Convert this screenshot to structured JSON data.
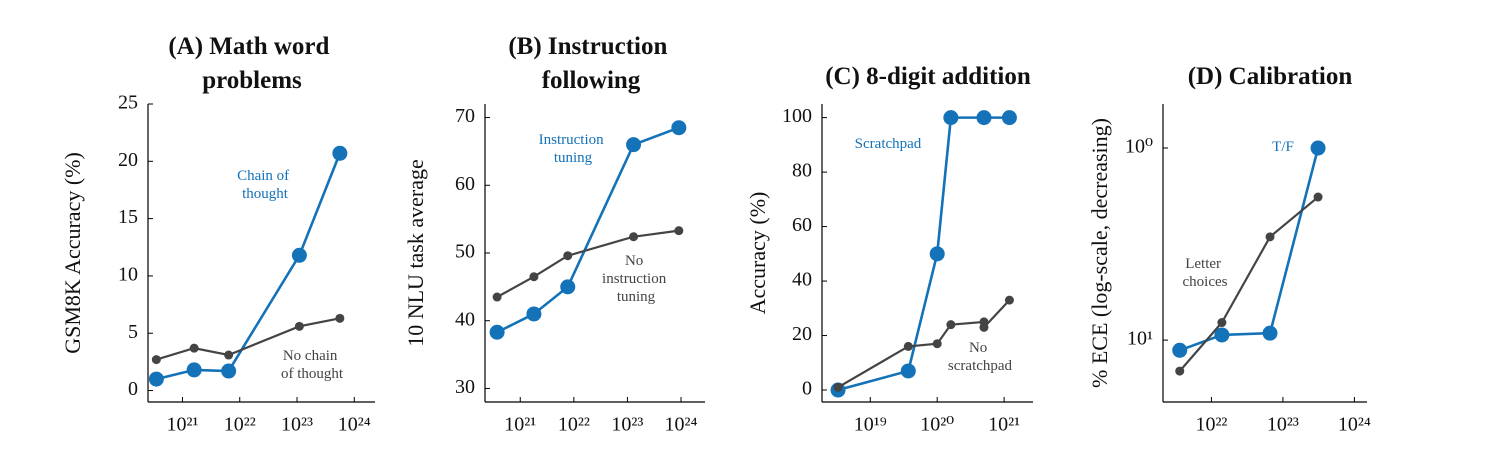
{
  "chart_data": [
    {
      "type": "line",
      "title": "(A) Math word problems",
      "y_label": "GSM8K Accuracy (%)",
      "x_log": true,
      "xlim": [
        2.5e+20,
        2.3e+24
      ],
      "ylim": [
        -1,
        25
      ],
      "xticks": [
        {
          "value": 1e+21,
          "label": "10²¹"
        },
        {
          "value": 1e+22,
          "label": "10²²"
        },
        {
          "value": 1e+23,
          "label": "10²³"
        },
        {
          "value": 1e+24,
          "label": "10²⁴"
        }
      ],
      "yticks": [
        0,
        5,
        10,
        15,
        20,
        25
      ],
      "series": [
        {
          "name": "Chain of thought",
          "color": "#1372b8",
          "x": [
            3.5e+20,
            1.6e+21,
            6.4e+21,
            1.1e+23,
            5.6e+23
          ],
          "values": [
            1.0,
            1.8,
            1.7,
            11.8,
            20.7
          ]
        },
        {
          "name": "No chain of thought",
          "color": "#444444",
          "x": [
            3.5e+20,
            1.6e+21,
            6.4e+21,
            1.1e+23,
            5.6e+23
          ],
          "values": [
            2.7,
            3.7,
            3.1,
            5.6,
            6.3
          ]
        }
      ]
    },
    {
      "type": "line",
      "title": "(B) Instruction following",
      "y_label": "10 NLU task average",
      "x_log": true,
      "xlim": [
        2.2e+20,
        2.8e+24
      ],
      "ylim": [
        28,
        72
      ],
      "xticks": [
        {
          "value": 1e+21,
          "label": "10²¹"
        },
        {
          "value": 1e+22,
          "label": "10²²"
        },
        {
          "value": 1e+23,
          "label": "10²³"
        },
        {
          "value": 1e+24,
          "label": "10²⁴"
        }
      ],
      "yticks": [
        30,
        40,
        50,
        60,
        70
      ],
      "series": [
        {
          "name": "Instruction tuning",
          "color": "#1372b8",
          "x": [
            3.7e+20,
            1.8e+21,
            7.7e+21,
            1.3e+23,
            9.1e+23
          ],
          "values": [
            38.3,
            41,
            45,
            66,
            68.5
          ]
        },
        {
          "name": "No instruction tuning",
          "color": "#444444",
          "x": [
            3.7e+20,
            1.8e+21,
            7.7e+21,
            1.3e+23,
            9.1e+23
          ],
          "values": [
            43.5,
            46.5,
            49.6,
            52.4,
            53.3
          ]
        }
      ]
    },
    {
      "type": "line",
      "title": "(C) 8-digit addition",
      "y_label": "Accuracy (%)",
      "x_log": true,
      "xlim": [
        1.9e+18,
        2.7e+21
      ],
      "ylim": [
        -4.4,
        105
      ],
      "xticks": [
        {
          "value": 1e+19,
          "label": "10¹⁹"
        },
        {
          "value": 1e+20,
          "label": "10²⁰"
        },
        {
          "value": 1e+21,
          "label": "10²¹"
        }
      ],
      "yticks": [
        0,
        20,
        40,
        60,
        80,
        100
      ],
      "series": [
        {
          "name": "Scratchpad",
          "color": "#1372b8",
          "x": [
            3.3e+18,
            3.7e+19,
            1e+20,
            1.6e+20,
            5e+20,
            1.2e+21
          ],
          "values": [
            0,
            7,
            50,
            100,
            100,
            100
          ]
        },
        {
          "name": "No scratchpad",
          "color": "#444444",
          "x": [
            3.3e+18,
            3.7e+19,
            1e+20,
            1.6e+20,
            5e+20,
            5e+20,
            1.2e+21
          ],
          "values": [
            1,
            16,
            17,
            24,
            25,
            23,
            33
          ]
        }
      ]
    },
    {
      "type": "line",
      "title": "(D) Calibration",
      "y_label": "% ECE (log-scale, decreasing)",
      "x_log": true,
      "y_log": true,
      "xlim": [
        2.1e+21,
        1.5e+24
      ],
      "ylim": [
        21,
        0.59
      ],
      "xticks": [
        {
          "value": 1e+22,
          "label": "10²²"
        },
        {
          "value": 1e+23,
          "label": "10²³"
        },
        {
          "value": 1e+24,
          "label": "10²⁴"
        }
      ],
      "yticks": [
        {
          "value": 1,
          "label": "10⁰"
        },
        {
          "value": 10,
          "label": "10¹"
        }
      ],
      "series": [
        {
          "name": "T/F",
          "color": "#1372b8",
          "x": [
            3.6e+21,
            1.4e+22,
            6.6e+22,
            3.1e+23
          ],
          "values": [
            11.3,
            9.4,
            9.2,
            1
          ]
        },
        {
          "name": "Letter choices",
          "color": "#444444",
          "x": [
            3.6e+21,
            1.4e+22,
            6.6e+22,
            3.1e+23
          ],
          "values": [
            14.5,
            8.1,
            2.9,
            1.8
          ]
        }
      ]
    }
  ]
}
